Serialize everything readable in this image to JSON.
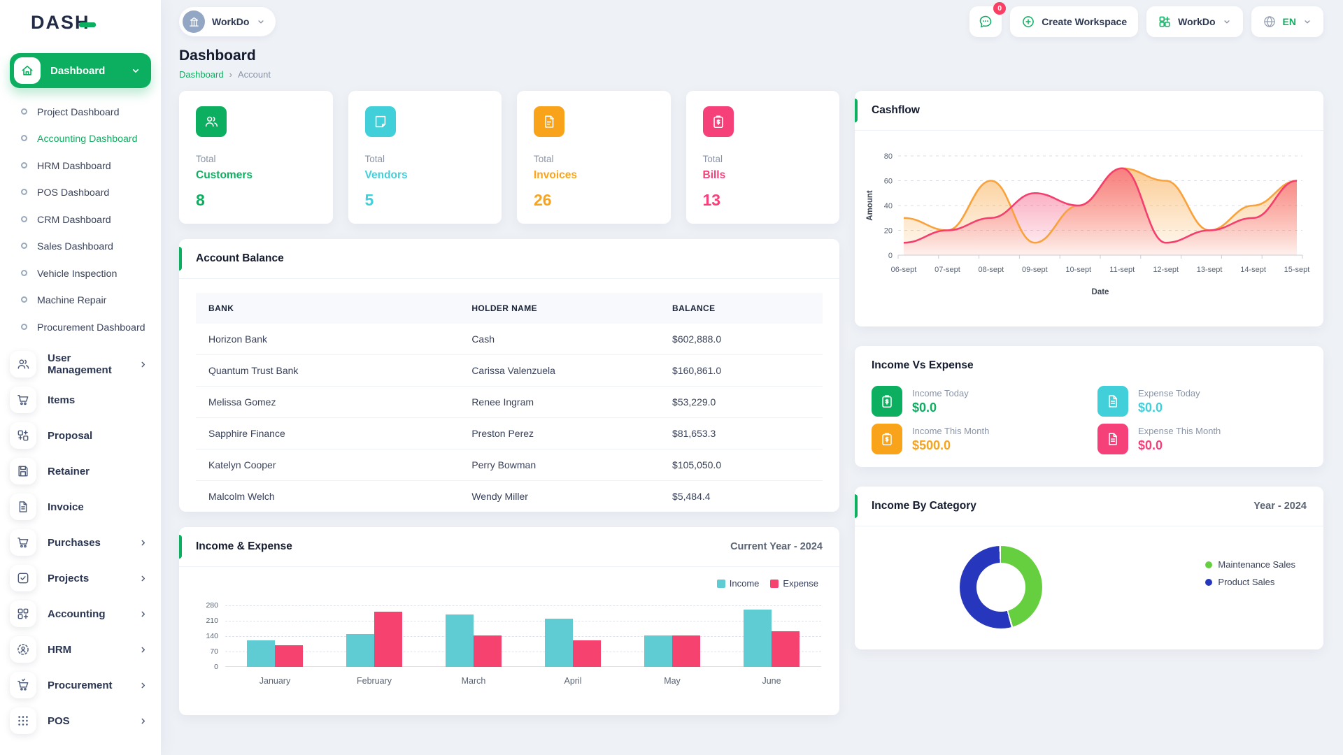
{
  "app": {
    "logo_text": "DASH",
    "accent_color": "#0caf60"
  },
  "topbar": {
    "workspace_chip": {
      "label": "WorkDo",
      "avatar_icon": "building-icon"
    },
    "messages_badge": "0",
    "create_workspace_label": "Create Workspace",
    "workdo_menu_label": "WorkDo",
    "language": "EN"
  },
  "sidebar": {
    "dashboard": {
      "label": "Dashboard",
      "icon": "home-icon",
      "children": [
        {
          "label": "Project Dashboard",
          "active": false
        },
        {
          "label": "Accounting Dashboard",
          "active": true
        },
        {
          "label": "HRM Dashboard",
          "active": false
        },
        {
          "label": "POS Dashboard",
          "active": false
        },
        {
          "label": "CRM Dashboard",
          "active": false
        },
        {
          "label": "Sales Dashboard",
          "active": false
        },
        {
          "label": "Vehicle Inspection",
          "active": false
        },
        {
          "label": "Machine Repair",
          "active": false
        },
        {
          "label": "Procurement Dashboard",
          "active": false
        }
      ]
    },
    "menu": [
      {
        "label": "User Management",
        "icon": "users-icon",
        "chevron": true
      },
      {
        "label": "Items",
        "icon": "cart-icon",
        "chevron": false
      },
      {
        "label": "Proposal",
        "icon": "proposal-icon",
        "chevron": false
      },
      {
        "label": "Retainer",
        "icon": "save-icon",
        "chevron": false
      },
      {
        "label": "Invoice",
        "icon": "file-icon",
        "chevron": false
      },
      {
        "label": "Purchases",
        "icon": "cart-icon",
        "chevron": true
      },
      {
        "label": "Projects",
        "icon": "check-square-icon",
        "chevron": true
      },
      {
        "label": "Accounting",
        "icon": "grid-plus-icon",
        "chevron": true
      },
      {
        "label": "HRM",
        "icon": "person-ring-icon",
        "chevron": true
      },
      {
        "label": "Procurement",
        "icon": "cart-check-icon",
        "chevron": true
      },
      {
        "label": "POS",
        "icon": "dots-grid-icon",
        "chevron": true
      }
    ]
  },
  "page": {
    "title": "Dashboard",
    "breadcrumb": [
      "Dashboard",
      "Account"
    ]
  },
  "stats": [
    {
      "total": "Total",
      "name": "Customers",
      "value": "8",
      "color": "#0caf60",
      "icon": "users-icon"
    },
    {
      "total": "Total",
      "name": "Vendors",
      "value": "5",
      "color": "#41d0da",
      "icon": "note-icon"
    },
    {
      "total": "Total",
      "name": "Invoices",
      "value": "26",
      "color": "#f9a31b",
      "icon": "invoice-icon"
    },
    {
      "total": "Total",
      "name": "Bills",
      "value": "13",
      "color": "#f5407a",
      "icon": "clipboard-dollar-icon"
    }
  ],
  "panels": {
    "cashflow": {
      "title": "Cashflow"
    },
    "account_balance": {
      "title": "Account Balance",
      "columns": [
        "BANK",
        "HOLDER NAME",
        "BALANCE"
      ],
      "rows": [
        [
          "Horizon Bank",
          "Cash",
          "$602,888.0"
        ],
        [
          "Quantum Trust Bank",
          "Carissa Valenzuela",
          "$160,861.0"
        ],
        [
          "Melissa Gomez",
          "Renee Ingram",
          "$53,229.0"
        ],
        [
          "Sapphire Finance",
          "Preston Perez",
          "$81,653.3"
        ],
        [
          "Katelyn Cooper",
          "Perry Bowman",
          "$105,050.0"
        ],
        [
          "Malcolm Welch",
          "Wendy Miller",
          "$5,484.4"
        ]
      ]
    },
    "income_vs_expense": {
      "title": "Income Vs Expense",
      "tiles": [
        {
          "label": "Income Today",
          "value": "$0.0",
          "color": "#0caf60",
          "icon": "clipboard-dollar-icon"
        },
        {
          "label": "Expense Today",
          "value": "$0.0",
          "color": "#41d0da",
          "icon": "file-lines-icon"
        },
        {
          "label": "Income This Month",
          "value": "$500.0",
          "color": "#f9a31b",
          "icon": "clipboard-dollar-icon"
        },
        {
          "label": "Expense This Month",
          "value": "$0.0",
          "color": "#f5407a",
          "icon": "file-lines-icon"
        }
      ]
    },
    "income_expense_chart": {
      "title": "Income & Expense"
    },
    "income_by_category": {
      "title": "Income By Category"
    }
  },
  "chart_data": [
    {
      "type": "area",
      "title": "Cashflow",
      "x": [
        "06-sept",
        "07-sept",
        "08-sept",
        "09-sept",
        "10-sept",
        "11-sept",
        "12-sept",
        "13-sept",
        "14-sept",
        "15-sept"
      ],
      "xlabel": "Date",
      "ylabel": "Amount",
      "ylim": [
        0,
        80
      ],
      "yticks": [
        0,
        20,
        40,
        60,
        80
      ],
      "grid": "horizontal-dashed",
      "legend": "none",
      "series": [
        {
          "name": "orange-series",
          "color": "#f9a23c",
          "values": [
            30,
            20,
            60,
            10,
            40,
            70,
            60,
            20,
            40,
            60
          ]
        },
        {
          "name": "pink-series",
          "color": "#f43f6e",
          "values": [
            10,
            20,
            30,
            50,
            40,
            70,
            10,
            20,
            30,
            60
          ]
        }
      ]
    },
    {
      "type": "bar",
      "title": "Income & Expense",
      "period": "Current Year - 2024",
      "categories": [
        "January",
        "February",
        "March",
        "April",
        "May",
        "June"
      ],
      "ylim": [
        0,
        280
      ],
      "yticks": [
        0,
        70,
        140,
        210,
        280
      ],
      "grid": "horizontal-dashed",
      "legend": "top-right",
      "series": [
        {
          "name": "Income",
          "color": "#5fcbd2",
          "values": [
            120,
            150,
            240,
            220,
            143,
            260
          ]
        },
        {
          "name": "Expense",
          "color": "#f5426f",
          "values": [
            100,
            250,
            143,
            120,
            143,
            163
          ]
        }
      ]
    },
    {
      "type": "donut",
      "title": "Income By Category",
      "period": "Year - 2024",
      "legend": "right",
      "slices": [
        {
          "label": "Maintenance Sales",
          "color": "#66cf3f",
          "pct": 46
        },
        {
          "label": "Product Sales",
          "color": "#2737bd",
          "pct": 54
        }
      ]
    }
  ]
}
